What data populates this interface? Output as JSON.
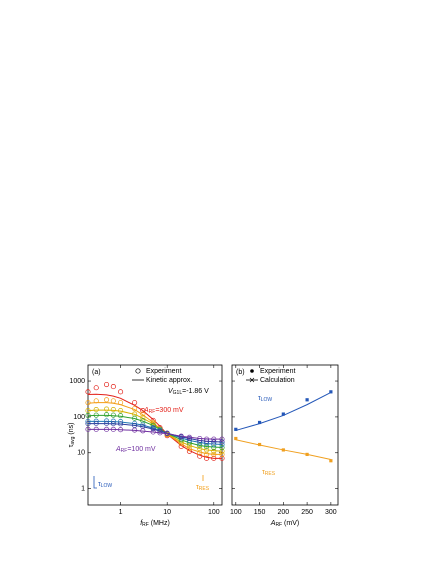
{
  "chart_data": [
    {
      "type": "line",
      "panel": "(a)",
      "xlog": true,
      "ylog": true,
      "xlim": [
        0.2,
        150
      ],
      "ylim": [
        0.35,
        2800
      ],
      "xticks": [
        1,
        10,
        100
      ],
      "yticks": [
        1,
        10,
        100,
        1000
      ],
      "xlabel": [
        "f",
        "RF",
        " (MHz)"
      ],
      "ylabel": [
        "τ",
        "avg",
        " (ns)"
      ],
      "marker": "circle-open",
      "legend": [
        "Experiment",
        "Kinetic approx."
      ],
      "x": [
        0.2,
        0.3,
        0.5,
        0.7,
        1,
        2,
        3,
        5,
        7,
        10,
        20,
        30,
        50,
        70,
        100,
        150
      ],
      "series": [
        {
          "color": "#e32119",
          "values": [
            500,
            650,
            800,
            700,
            500,
            250,
            150,
            80,
            50,
            30,
            15,
            11,
            8,
            7,
            7,
            7
          ],
          "fit": [
            420,
            430,
            410,
            380,
            330,
            210,
            150,
            85,
            55,
            33,
            16,
            11.5,
            8.5,
            7.5,
            7,
            7
          ]
        },
        {
          "color": "#f39c12",
          "values": [
            250,
            280,
            300,
            280,
            250,
            170,
            120,
            70,
            45,
            32,
            18,
            13,
            10,
            9,
            9,
            9
          ],
          "fit": [
            240,
            250,
            250,
            240,
            220,
            160,
            115,
            70,
            47,
            33,
            18,
            13,
            10.5,
            9.5,
            9,
            9
          ]
        },
        {
          "color": "#d4b000",
          "values": [
            150,
            160,
            165,
            160,
            150,
            120,
            95,
            65,
            45,
            33,
            20,
            16,
            13,
            12,
            11,
            11
          ],
          "fit": [
            150,
            155,
            155,
            152,
            145,
            118,
            92,
            64,
            46,
            34,
            20,
            16,
            13,
            12,
            11.5,
            11
          ]
        },
        {
          "color": "#2ca02c",
          "values": [
            110,
            112,
            115,
            112,
            108,
            92,
            78,
            58,
            45,
            35,
            23,
            19,
            16,
            15,
            14,
            14
          ],
          "fit": [
            108,
            110,
            110,
            108,
            104,
            90,
            76,
            58,
            45,
            35,
            23,
            19,
            16,
            15,
            14.5,
            14
          ]
        },
        {
          "color": "#1f77b4",
          "values": [
            75,
            76,
            77,
            76,
            74,
            66,
            60,
            50,
            42,
            35,
            26,
            22,
            19,
            18,
            17,
            17
          ],
          "fit": [
            75,
            75,
            75,
            74,
            72,
            65,
            59,
            49,
            42,
            35,
            26,
            22,
            19.5,
            18,
            17.5,
            17
          ]
        },
        {
          "color": "#2c3e9e",
          "values": [
            65,
            66,
            66,
            65,
            64,
            58,
            54,
            47,
            40,
            35,
            28,
            25,
            22,
            21,
            20,
            20
          ],
          "fit": [
            65,
            65,
            65,
            64,
            63,
            58,
            53,
            46,
            40,
            35,
            28,
            25,
            22,
            21,
            20.5,
            20
          ]
        },
        {
          "color": "#7030a0",
          "values": [
            45,
            45,
            45,
            45,
            44,
            43,
            41,
            38,
            36,
            34,
            29,
            27,
            25,
            24,
            24,
            24
          ],
          "fit": [
            45,
            45,
            45,
            45,
            44,
            42,
            40,
            38,
            36,
            34,
            29,
            27,
            25,
            24.5,
            24,
            24
          ]
        }
      ],
      "annotations": [
        {
          "text": [
            "V",
            "G1L",
            "=-1.86 V"
          ],
          "color": "#000000"
        },
        {
          "text": [
            "A",
            "RF",
            "=300 mV"
          ],
          "color": "#e32119"
        },
        {
          "text": [
            "A",
            "RF",
            "=100 mV"
          ],
          "color": "#7030a0"
        },
        {
          "text": [
            "τ",
            "LOW"
          ],
          "color": "#2457b8"
        },
        {
          "text": [
            "τ",
            "RES"
          ],
          "color": "#f39c12"
        }
      ]
    },
    {
      "type": "line",
      "panel": "(b)",
      "xlog": false,
      "ylog": true,
      "xlim": [
        92,
        315
      ],
      "ylim": [
        0.35,
        2800
      ],
      "xticks": [
        100,
        150,
        200,
        250,
        300
      ],
      "yticks": [
        1,
        10,
        100,
        1000
      ],
      "ytick_labels": false,
      "xlabel": [
        "A",
        "RF",
        " (mV)"
      ],
      "marker": "square",
      "legend": [
        "Experiment",
        "Calculation"
      ],
      "x": [
        100,
        150,
        200,
        250,
        300
      ],
      "series": [
        {
          "color": "#2457b8",
          "values": [
            45,
            70,
            120,
            300,
            500
          ],
          "fit": [
            42,
            65,
            110,
            220,
            480
          ]
        },
        {
          "color": "#f0a020",
          "values": [
            25,
            17,
            12,
            9,
            6
          ],
          "fit": [
            23,
            16.5,
            12,
            9,
            6.5
          ]
        }
      ],
      "annotations": [
        {
          "text": [
            "τ",
            "LOW"
          ],
          "color": "#2457b8"
        },
        {
          "text": [
            "τ",
            "RES"
          ],
          "color": "#f0a020"
        }
      ]
    }
  ]
}
